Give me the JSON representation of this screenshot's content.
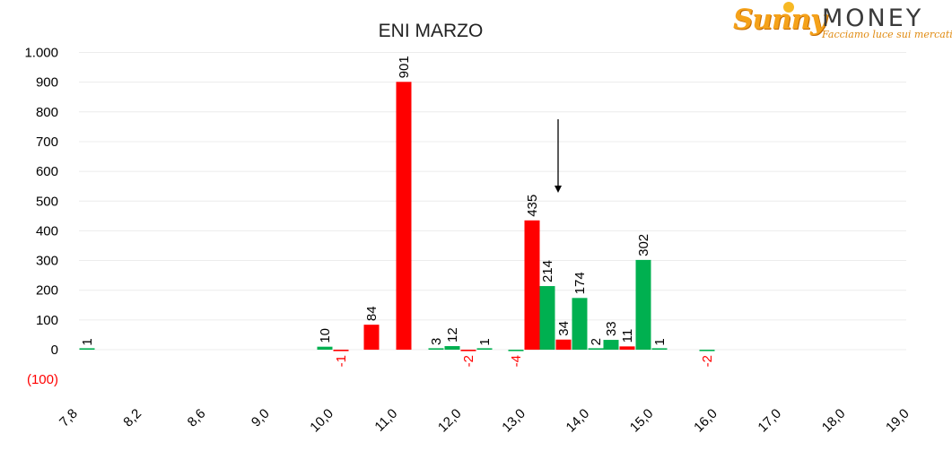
{
  "logo": {
    "brand_part1": "Sunny",
    "brand_part2": "MONEY",
    "tagline": "Facciamo luce sui mercati"
  },
  "chart_data": {
    "type": "bar",
    "title": "ENI MARZO",
    "xlabel": "",
    "ylabel": "",
    "ylim": [
      -100,
      1000
    ],
    "y_ticks": [
      -100,
      0,
      100,
      200,
      300,
      400,
      500,
      600,
      700,
      800,
      900,
      1000
    ],
    "y_tick_labels": [
      "(100)",
      "0",
      "100",
      "200",
      "300",
      "400",
      "500",
      "600",
      "700",
      "800",
      "900",
      "1.000"
    ],
    "categories": [
      "7,8",
      "8,2",
      "8,6",
      "9,0",
      "10,0",
      "11,0",
      "12,0",
      "13,0",
      "14,0",
      "15,0",
      "16,0",
      "17,0",
      "18,0",
      "19,0"
    ],
    "grid": true,
    "colors": {
      "positive": "#00b050",
      "negative": "#ff0000",
      "neg_axis_label": "#ff0000",
      "grid": "#ececec"
    },
    "bars": [
      {
        "category": "7,8",
        "value": 1,
        "color": "#00b050",
        "label": "1"
      },
      {
        "category": "10,0",
        "value": 10,
        "color": "#00b050",
        "label": "10"
      },
      {
        "category": "10,0",
        "value": -1,
        "color": "#ff0000",
        "label": "-1"
      },
      {
        "category": "11,0",
        "value": 84,
        "color": "#ff0000",
        "label": "84"
      },
      {
        "category": "11,0",
        "value": 901,
        "color": "#ff0000",
        "label": "901"
      },
      {
        "category": "12,0",
        "value": 3,
        "color": "#00b050",
        "label": "3"
      },
      {
        "category": "12,0",
        "value": 12,
        "color": "#00b050",
        "label": "12"
      },
      {
        "category": "12,0",
        "value": -2,
        "color": "#ff0000",
        "label": "-2"
      },
      {
        "category": "12,0",
        "value": 1,
        "color": "#00b050",
        "label": "1"
      },
      {
        "category": "13,0",
        "value": -4,
        "color": "#00b050",
        "label": "-4"
      },
      {
        "category": "13,0",
        "value": 435,
        "color": "#ff0000",
        "label": "435"
      },
      {
        "category": "13,0",
        "value": 214,
        "color": "#00b050",
        "label": "214"
      },
      {
        "category": "13,0",
        "value": 34,
        "color": "#ff0000",
        "label": "34"
      },
      {
        "category": "14,0",
        "value": 174,
        "color": "#00b050",
        "label": "174"
      },
      {
        "category": "14,0",
        "value": 2,
        "color": "#00b050",
        "label": "2"
      },
      {
        "category": "14,0",
        "value": 33,
        "color": "#00b050",
        "label": "33"
      },
      {
        "category": "14,0",
        "value": 11,
        "color": "#ff0000",
        "label": "11"
      },
      {
        "category": "15,0",
        "value": 302,
        "color": "#00b050",
        "label": "302"
      },
      {
        "category": "15,0",
        "value": 1,
        "color": "#00b050",
        "label": "1"
      },
      {
        "category": "16,0",
        "value": -2,
        "color": "#00b050",
        "label": "-2"
      }
    ],
    "annotation": {
      "type": "arrow",
      "direction": "down",
      "near_category": "13,0"
    }
  }
}
